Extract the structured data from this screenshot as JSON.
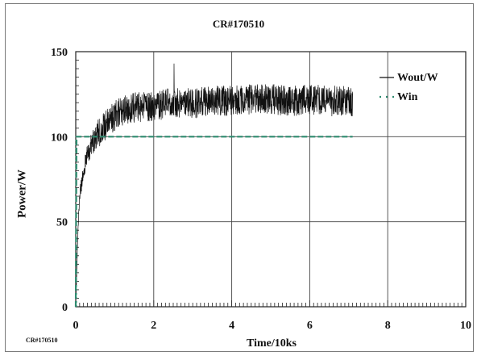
{
  "chart_data": {
    "type": "line",
    "title": "CR#170510",
    "xlabel": "Time/10ks",
    "ylabel": "Power/W",
    "xlim": [
      0,
      10
    ],
    "ylim": [
      0,
      150
    ],
    "xticks": [
      "0",
      "2",
      "4",
      "6",
      "8",
      "10"
    ],
    "yticks": [
      "0",
      "50",
      "100",
      "150"
    ],
    "grid": true,
    "legend_position": "top-right",
    "series": [
      {
        "name": "Wout/W",
        "color": "#111111",
        "style": "solid-noisy",
        "x": [
          0,
          0.05,
          0.1,
          0.2,
          0.3,
          0.4,
          0.5,
          0.6,
          0.8,
          1.0,
          1.2,
          1.5,
          2.0,
          2.5,
          3.0,
          3.5,
          4.0,
          4.5,
          5.0,
          5.5,
          6.0,
          6.5,
          7.1
        ],
        "y": [
          0,
          40,
          65,
          80,
          90,
          95,
          99,
          103,
          108,
          112,
          115,
          117,
          118,
          120,
          120,
          121,
          121,
          122,
          122,
          121,
          122,
          121,
          121
        ],
        "noise_amplitude": 9,
        "max": 143
      },
      {
        "name": "Win",
        "color": "#2e8b6f",
        "style": "dashed",
        "x": [
          0,
          0.02,
          7.1
        ],
        "y": [
          0,
          100,
          100
        ]
      }
    ]
  },
  "footer_label": "CR#170510"
}
